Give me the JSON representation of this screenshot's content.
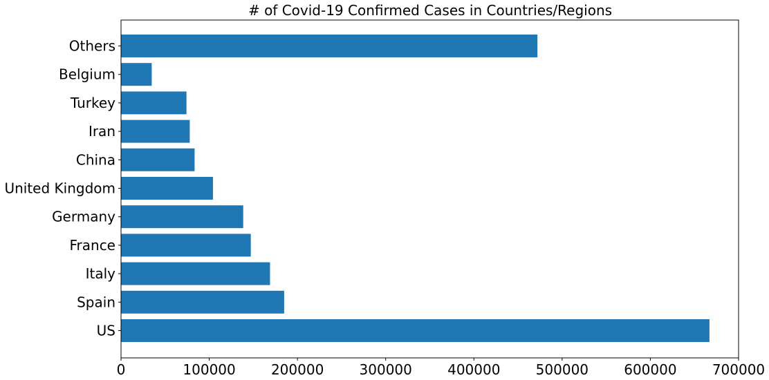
{
  "chart_data": {
    "type": "bar",
    "orientation": "horizontal",
    "title": "# of Covid-19 Confirmed Cases in Countries/Regions",
    "xlabel": "",
    "ylabel": "",
    "categories": [
      "US",
      "Spain",
      "Italy",
      "France",
      "Germany",
      "United Kingdom",
      "China",
      "Iran",
      "Turkey",
      "Belgium",
      "Others"
    ],
    "values": [
      667000,
      184900,
      168900,
      147100,
      138500,
      104200,
      83400,
      77900,
      74200,
      34800,
      472000
    ],
    "xlim": [
      0,
      700000
    ],
    "xticks": [
      0,
      100000,
      200000,
      300000,
      400000,
      500000,
      600000,
      700000
    ],
    "xtick_labels": [
      "0",
      "100000",
      "200000",
      "300000",
      "400000",
      "500000",
      "600000",
      "700000"
    ],
    "bar_color": "#1f77b4",
    "grid": false,
    "legend": false
  }
}
